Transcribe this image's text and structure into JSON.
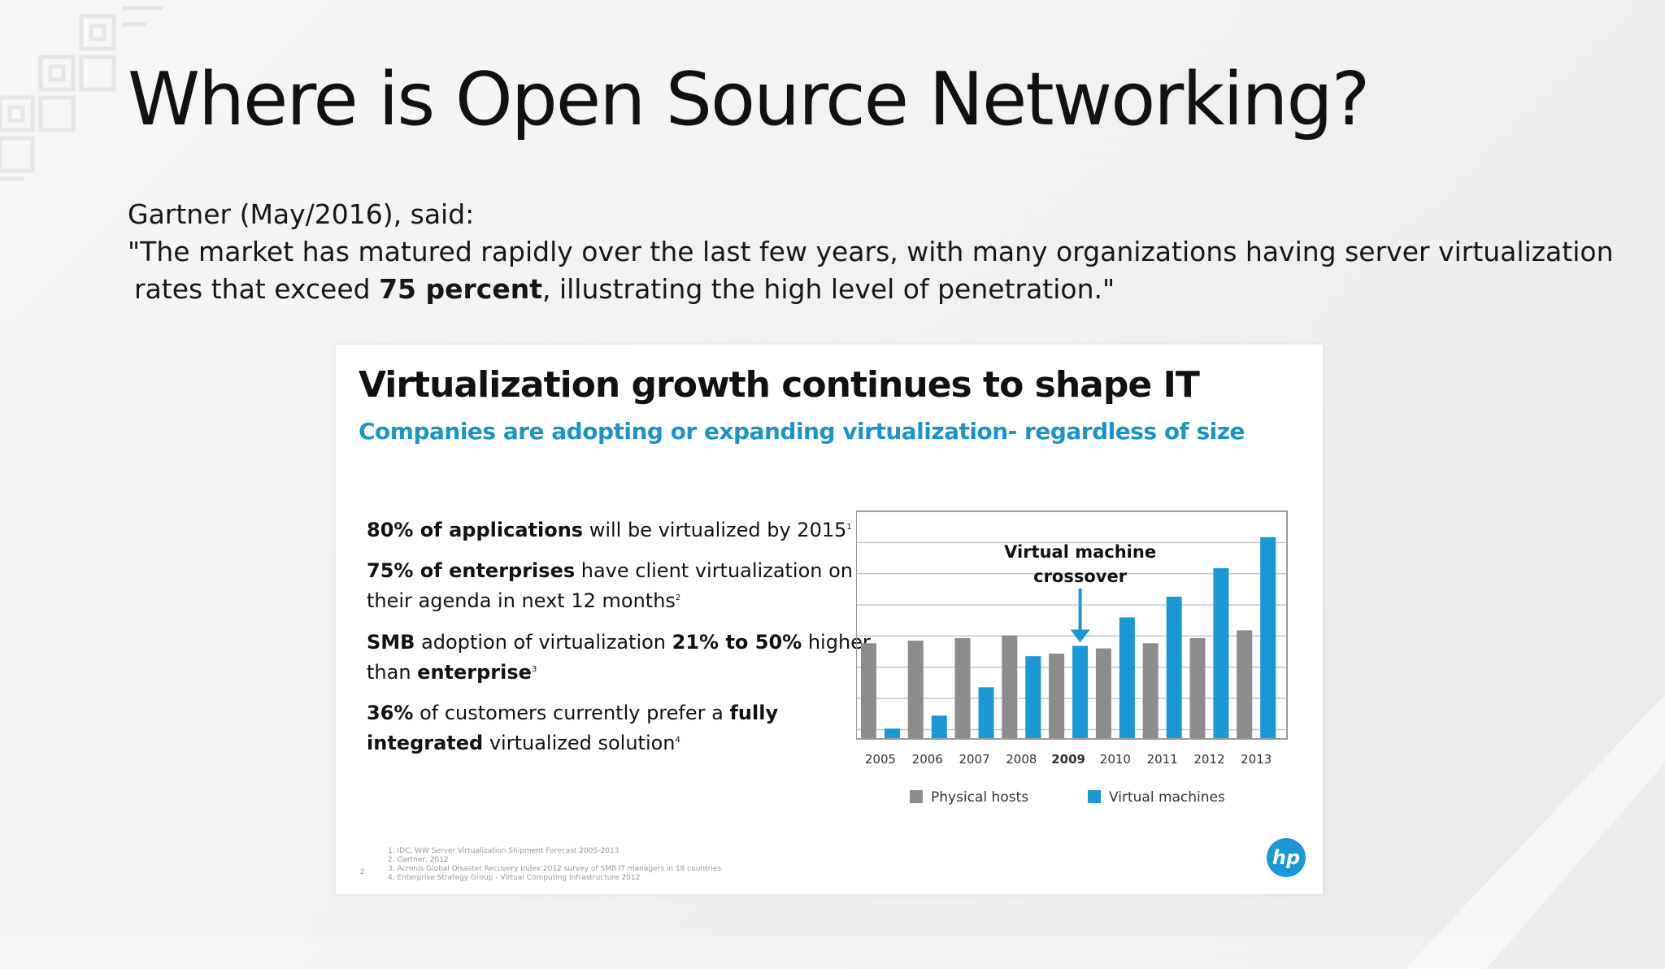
{
  "slide": {
    "title": "Where is Open Source Networking?",
    "quote_intro": "Gartner (May/2016), said:",
    "quote_line1": "\"The market has matured rapidly over the last few years, with many organizations having server virtualization",
    "quote_line2_pre": "rates that exceed ",
    "quote_line2_bold": "75 percent",
    "quote_line2_post": ", illustrating the high level of penetration.\""
  },
  "panel": {
    "title": "Virtualization growth continues to shape IT",
    "subtitle": "Companies are adopting or expanding virtualization- regardless of size",
    "stats": [
      {
        "bold1": "80% of applications",
        "text1": " will be virtualized by 2015",
        "sup": "1"
      },
      {
        "bold1": "75% of enterprises",
        "text1": " have client virtualization on",
        "line2": "their agenda in next 12 months",
        "sup": "2"
      },
      {
        "bold1": "SMB",
        "text1": " adoption of virtualization  ",
        "bold2": "21% to 50%",
        "text2": " higher",
        "line2_pre": "than ",
        "line2_bold": "enterprise",
        "sup": "3"
      },
      {
        "bold1": "36%",
        "text1": " of customers currently prefer a ",
        "bold2": "fully",
        "line2_bold": "integrated",
        "line2_post": " virtualized solution",
        "sup": "4"
      }
    ],
    "footnotes": [
      "1. IDC, WW Server Virtualization Shipment Forecast 2005-2013",
      "2. Gartner, 2012",
      "3. Acronis Global Disaster Recovery Index 2012 survey of SMB IT managers in 18 countries",
      "4. Enterprise Strategy Group - Virtual Computing Infrastructure 2012"
    ],
    "page_number": "2",
    "logo_text": "hp"
  },
  "colors": {
    "physical": "#8c8c8c",
    "virtual": "#1a98d5",
    "accent": "#1c93c9"
  },
  "chart_data": {
    "type": "bar",
    "categories": [
      "2005",
      "2006",
      "2007",
      "2008",
      "2009",
      "2010",
      "2011",
      "2012",
      "2013"
    ],
    "highlight_category": "2009",
    "series": [
      {
        "name": "Physical hosts",
        "values": [
          37,
          38,
          39,
          40,
          33,
          35,
          37,
          39,
          42
        ]
      },
      {
        "name": "Virtual machines",
        "values": [
          4,
          9,
          20,
          32,
          36,
          47,
          55,
          66,
          78
        ]
      }
    ],
    "ylim": [
      0,
      88
    ],
    "grid": true,
    "annotation": {
      "line1": "Virtual machine",
      "line2": "crossover",
      "category": "2009"
    },
    "legend_position": "bottom"
  }
}
